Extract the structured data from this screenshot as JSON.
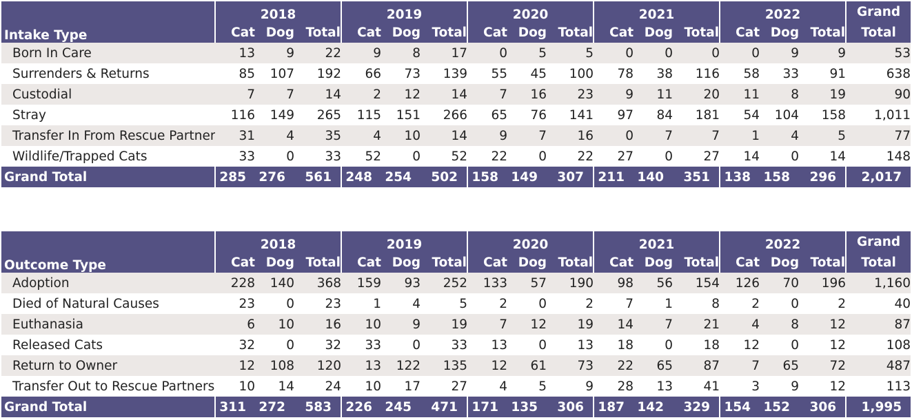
{
  "chart_data": [
    {
      "type": "table",
      "row_header": "Intake Type",
      "years": [
        "2018",
        "2019",
        "2020",
        "2021",
        "2022"
      ],
      "subcolumns": [
        "Cat",
        "Dog",
        "Total"
      ],
      "grand_total_header": [
        "Grand",
        "Total"
      ],
      "rows": [
        {
          "label": "Born In Care",
          "values": [
            "13",
            "9",
            "22",
            "9",
            "8",
            "17",
            "0",
            "5",
            "5",
            "0",
            "0",
            "0",
            "0",
            "9",
            "9"
          ],
          "grand_total": "53"
        },
        {
          "label": "Surrenders & Returns",
          "values": [
            "85",
            "107",
            "192",
            "66",
            "73",
            "139",
            "55",
            "45",
            "100",
            "78",
            "38",
            "116",
            "58",
            "33",
            "91"
          ],
          "grand_total": "638"
        },
        {
          "label": "Custodial",
          "values": [
            "7",
            "7",
            "14",
            "2",
            "12",
            "14",
            "7",
            "16",
            "23",
            "9",
            "11",
            "20",
            "11",
            "8",
            "19"
          ],
          "grand_total": "90"
        },
        {
          "label": "Stray",
          "values": [
            "116",
            "149",
            "265",
            "115",
            "151",
            "266",
            "65",
            "76",
            "141",
            "97",
            "84",
            "181",
            "54",
            "104",
            "158"
          ],
          "grand_total": "1,011"
        },
        {
          "label": "Transfer In From Rescue Partners",
          "values": [
            "31",
            "4",
            "35",
            "4",
            "10",
            "14",
            "9",
            "7",
            "16",
            "0",
            "7",
            "7",
            "1",
            "4",
            "5"
          ],
          "grand_total": "77"
        },
        {
          "label": "Wildlife/Trapped Cats",
          "values": [
            "33",
            "0",
            "33",
            "52",
            "0",
            "52",
            "22",
            "0",
            "22",
            "27",
            "0",
            "27",
            "14",
            "0",
            "14"
          ],
          "grand_total": "148"
        }
      ],
      "total_row": {
        "label": "Grand Total",
        "values": [
          "285",
          "276",
          "561",
          "248",
          "254",
          "502",
          "158",
          "149",
          "307",
          "211",
          "140",
          "351",
          "138",
          "158",
          "296"
        ],
        "grand_total": "2,017"
      }
    },
    {
      "type": "table",
      "row_header": "Outcome Type",
      "years": [
        "2018",
        "2019",
        "2020",
        "2021",
        "2022"
      ],
      "subcolumns": [
        "Cat",
        "Dog",
        "Total"
      ],
      "grand_total_header": [
        "Grand",
        "Total"
      ],
      "rows": [
        {
          "label": "Adoption",
          "values": [
            "228",
            "140",
            "368",
            "159",
            "93",
            "252",
            "133",
            "57",
            "190",
            "98",
            "56",
            "154",
            "126",
            "70",
            "196"
          ],
          "grand_total": "1,160"
        },
        {
          "label": "Died of Natural Causes",
          "values": [
            "23",
            "0",
            "23",
            "1",
            "4",
            "5",
            "2",
            "0",
            "2",
            "7",
            "1",
            "8",
            "2",
            "0",
            "2"
          ],
          "grand_total": "40"
        },
        {
          "label": "Euthanasia",
          "values": [
            "6",
            "10",
            "16",
            "10",
            "9",
            "19",
            "7",
            "12",
            "19",
            "14",
            "7",
            "21",
            "4",
            "8",
            "12"
          ],
          "grand_total": "87"
        },
        {
          "label": "Released Cats",
          "values": [
            "32",
            "0",
            "32",
            "33",
            "0",
            "33",
            "13",
            "0",
            "13",
            "18",
            "0",
            "18",
            "12",
            "0",
            "12"
          ],
          "grand_total": "108"
        },
        {
          "label": "Return to Owner",
          "values": [
            "12",
            "108",
            "120",
            "13",
            "122",
            "135",
            "12",
            "61",
            "73",
            "22",
            "65",
            "87",
            "7",
            "65",
            "72"
          ],
          "grand_total": "487"
        },
        {
          "label": "Transfer Out to Rescue Partners",
          "values": [
            "10",
            "14",
            "24",
            "10",
            "17",
            "27",
            "4",
            "5",
            "9",
            "28",
            "13",
            "41",
            "3",
            "9",
            "12"
          ],
          "grand_total": "113"
        }
      ],
      "total_row": {
        "label": "Grand Total",
        "values": [
          "311",
          "272",
          "583",
          "226",
          "245",
          "471",
          "171",
          "135",
          "306",
          "187",
          "142",
          "329",
          "154",
          "152",
          "306"
        ],
        "grand_total": "1,995"
      }
    }
  ],
  "colors": {
    "header_bg": "#545183",
    "header_text": "#ffffff",
    "band": "#ece8e6",
    "plain": "#ffffff",
    "text": "#222222"
  }
}
